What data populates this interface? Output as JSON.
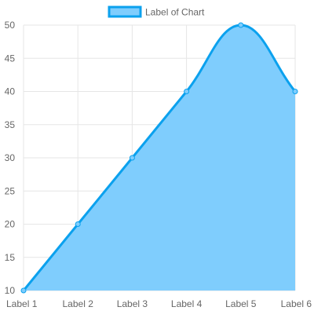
{
  "chart_data": {
    "type": "area",
    "categories": [
      "Label 1",
      "Label 2",
      "Label 3",
      "Label 4",
      "Label 5",
      "Label 6"
    ],
    "series": [
      {
        "name": "Label of Chart",
        "values": [
          10,
          20,
          30,
          40,
          50,
          40
        ]
      }
    ],
    "ylim": [
      10,
      50
    ],
    "yticks": [
      10,
      15,
      20,
      25,
      30,
      35,
      40,
      45,
      50
    ],
    "grid": true,
    "legend_position": "top-center",
    "colors": {
      "fill": "#7fcdfd",
      "line": "#0ba1ee",
      "point_fill": "#7fcdfd",
      "grid": "#e6e6e6",
      "tick_text": "#666666"
    }
  }
}
